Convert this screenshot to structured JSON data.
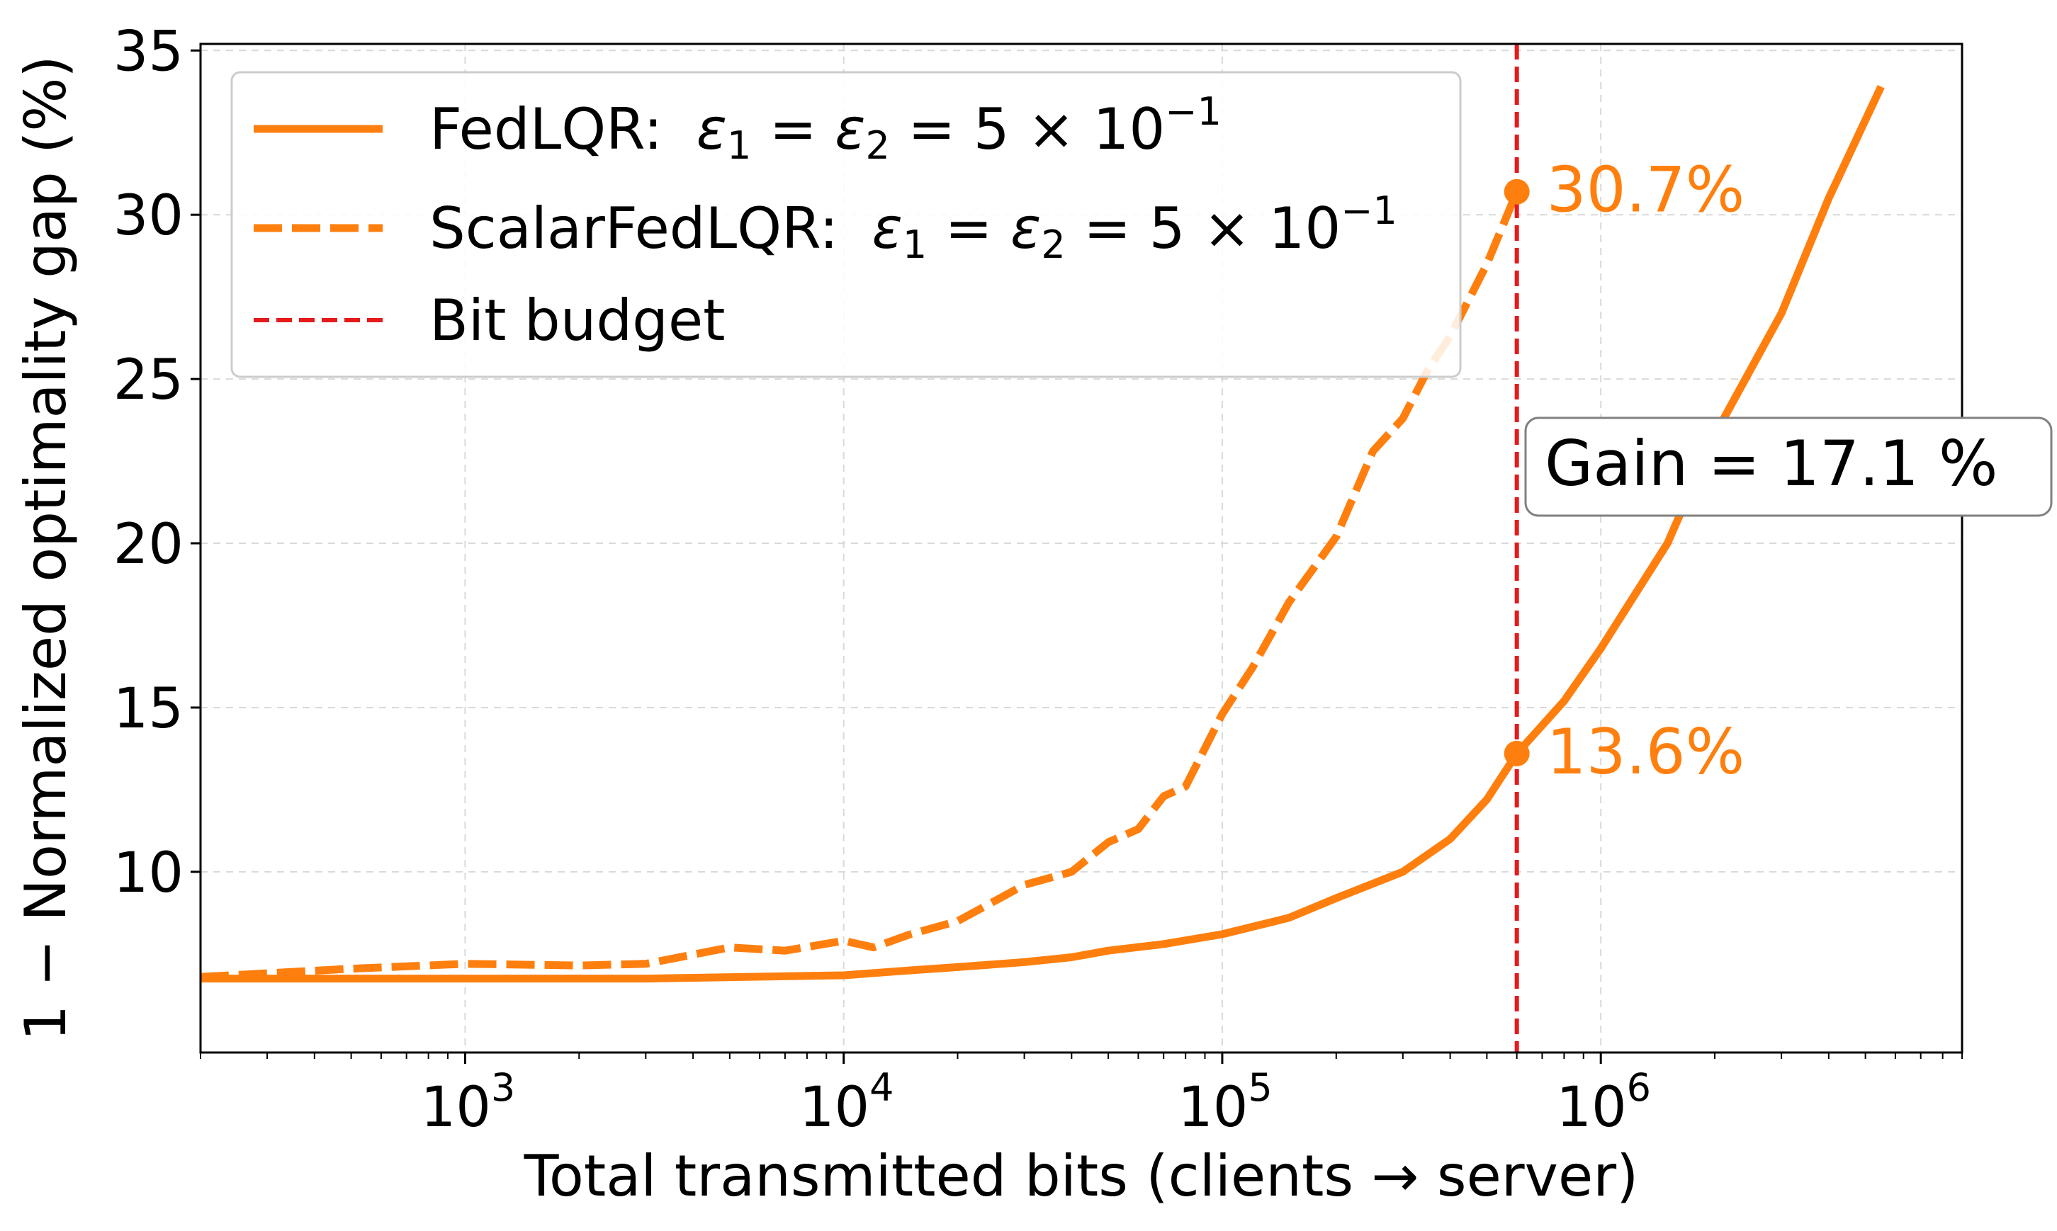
{
  "chart_data": {
    "type": "line",
    "xscale": "log",
    "xlabel": "Total transmitted bits (clients → server)",
    "ylabel": "1 − Normalized optimality gap (%)",
    "xlim": [
      200,
      9000000
    ],
    "ylim": [
      4.5,
      35.2
    ],
    "yticks": [
      10,
      15,
      20,
      25,
      30,
      35
    ],
    "ytick_labels": [
      "10",
      "15",
      "20",
      "25",
      "30",
      "35"
    ],
    "xticks": [
      1000,
      10000,
      100000,
      1000000
    ],
    "xtick_bases": [
      "10",
      "10",
      "10",
      "10"
    ],
    "xtick_exponents": [
      "3",
      "4",
      "5",
      "6"
    ],
    "grid": true,
    "colors": {
      "series": "#ff7f0e",
      "budget": "#e41a1c",
      "axis": "#000000",
      "grid": "#d9d9d9"
    },
    "series": [
      {
        "name": "FedLQR",
        "legend_prefix": "FedLQR:",
        "legend_eps": "ε",
        "legend_sub1": "1",
        "legend_eq1": " = ",
        "legend_sub2": "2",
        "legend_eq2": " = 5 × 10",
        "legend_exp": "−1",
        "style": "solid",
        "x": [
          200,
          500,
          1000,
          3000,
          10000,
          15000,
          20000,
          30000,
          40000,
          50000,
          70000,
          100000,
          150000,
          200000,
          300000,
          400000,
          500000,
          600000,
          800000,
          1000000,
          1500000,
          2000000,
          3000000,
          4000000,
          5500000
        ],
        "y": [
          6.75,
          6.75,
          6.75,
          6.75,
          6.85,
          7.0,
          7.1,
          7.25,
          7.4,
          7.6,
          7.8,
          8.1,
          8.6,
          9.2,
          10.0,
          11.0,
          12.2,
          13.6,
          15.2,
          16.8,
          20.0,
          23.3,
          27.0,
          30.5,
          33.9
        ]
      },
      {
        "name": "ScalarFedLQR",
        "legend_prefix": "ScalarFedLQR:",
        "legend_eps": "ε",
        "legend_sub1": "1",
        "legend_eq1": " = ",
        "legend_sub2": "2",
        "legend_eq2": " = 5 × 10",
        "legend_exp": "−1",
        "style": "dashed",
        "x": [
          200,
          500,
          1000,
          2000,
          3000,
          5000,
          7000,
          10000,
          12000,
          15000,
          20000,
          30000,
          40000,
          50000,
          60000,
          70000,
          80000,
          100000,
          120000,
          150000,
          200000,
          250000,
          300000,
          350000,
          400000,
          500000,
          600000
        ],
        "y": [
          6.8,
          7.05,
          7.2,
          7.15,
          7.2,
          7.7,
          7.6,
          7.9,
          7.7,
          8.1,
          8.5,
          9.6,
          10.0,
          10.9,
          11.3,
          12.3,
          12.6,
          14.8,
          16.2,
          18.2,
          20.2,
          22.8,
          23.8,
          25.3,
          26.3,
          28.5,
          30.7
        ]
      }
    ],
    "bit_budget": {
      "label": "Bit budget",
      "x": 600000
    },
    "markers": [
      {
        "series": "ScalarFedLQR",
        "x": 600000,
        "y": 30.7,
        "label": "30.7%"
      },
      {
        "series": "FedLQR",
        "x": 600000,
        "y": 13.6,
        "label": "13.6%"
      }
    ],
    "gain_box": {
      "label": "Gain = 17.1 %",
      "gain_percent": 17.1
    },
    "legend_position": "upper-left"
  }
}
